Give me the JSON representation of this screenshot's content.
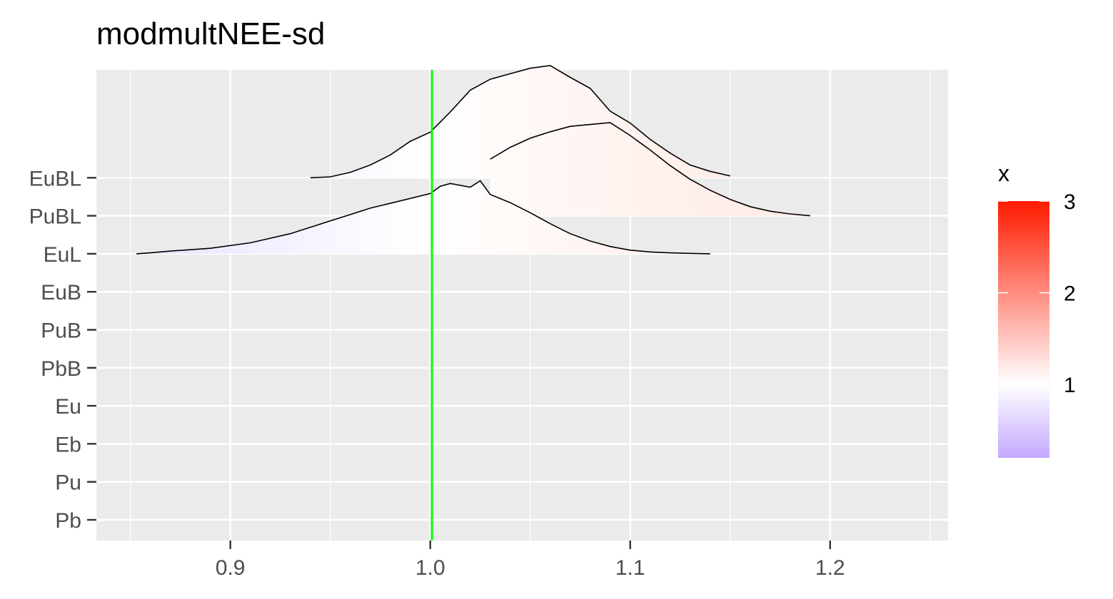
{
  "chart_data": {
    "type": "ridgeline",
    "title": "modmultNEE-sd",
    "xlabel": "",
    "ylabel": "",
    "xlim": [
      0.833,
      1.259
    ],
    "x_ticks": [
      "0.9",
      "1.0",
      "1.1",
      "1.2"
    ],
    "x_tick_values": [
      0.9,
      1.0,
      1.1,
      1.2
    ],
    "categories": [
      "Pb",
      "Pu",
      "Eb",
      "Eu",
      "PbB",
      "PuB",
      "EuB",
      "EuL",
      "PuBL",
      "EuBL"
    ],
    "reference_line": {
      "x": 1.0,
      "color": "#00ff00"
    },
    "grid": true,
    "series": [
      {
        "name": "EuL",
        "x": [
          0.853,
          0.86,
          0.87,
          0.89,
          0.91,
          0.93,
          0.95,
          0.97,
          0.985,
          1.0,
          1.005,
          1.01,
          1.02,
          1.025,
          1.03,
          1.04,
          1.05,
          1.06,
          1.07,
          1.08,
          1.09,
          1.1,
          1.11,
          1.12,
          1.13,
          1.14
        ],
        "density": [
          0.0,
          0.01,
          0.03,
          0.06,
          0.12,
          0.22,
          0.36,
          0.5,
          0.58,
          0.66,
          0.74,
          0.77,
          0.73,
          0.8,
          0.65,
          0.56,
          0.45,
          0.33,
          0.22,
          0.14,
          0.08,
          0.04,
          0.02,
          0.01,
          0.005,
          0.0
        ]
      },
      {
        "name": "PuBL",
        "x": [
          1.03,
          1.04,
          1.05,
          1.06,
          1.07,
          1.08,
          1.09,
          1.1,
          1.11,
          1.12,
          1.13,
          1.14,
          1.15,
          1.16,
          1.17,
          1.18,
          1.19
        ],
        "density": [
          0.62,
          0.75,
          0.85,
          0.92,
          0.98,
          1.0,
          1.02,
          0.88,
          0.72,
          0.55,
          0.4,
          0.28,
          0.18,
          0.1,
          0.05,
          0.02,
          0.0
        ]
      },
      {
        "name": "EuBL",
        "x": [
          0.94,
          0.95,
          0.96,
          0.97,
          0.98,
          0.99,
          1.0,
          1.01,
          1.02,
          1.03,
          1.04,
          1.05,
          1.06,
          1.07,
          1.08,
          1.09,
          1.1,
          1.11,
          1.12,
          1.13,
          1.14,
          1.15
        ],
        "density": [
          0.0,
          0.01,
          0.06,
          0.14,
          0.25,
          0.4,
          0.5,
          0.72,
          0.96,
          1.08,
          1.14,
          1.2,
          1.23,
          1.1,
          0.98,
          0.73,
          0.6,
          0.42,
          0.27,
          0.14,
          0.07,
          0.02
        ]
      }
    ],
    "legend": {
      "title": "x",
      "position": "right",
      "labels": [
        "3",
        "2",
        "1"
      ],
      "label_values": [
        3,
        2,
        1
      ],
      "range": [
        0.2,
        3
      ],
      "colors": {
        "low": "#c4a8ff",
        "mid": "#ffffff",
        "high": "#ff1a00"
      }
    }
  }
}
